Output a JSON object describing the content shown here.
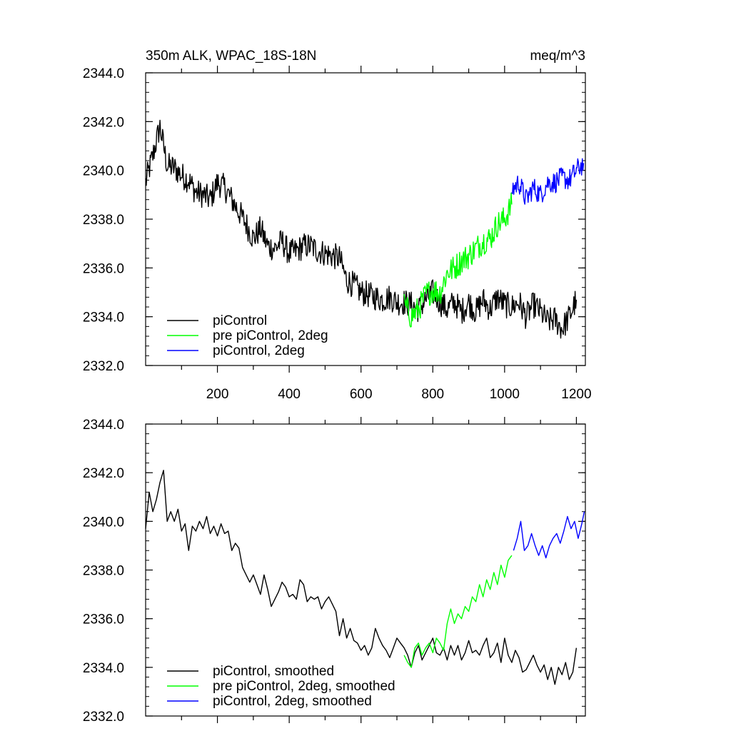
{
  "chart_data": [
    {
      "type": "line",
      "title": "350m ALK, WPAC_18S-18N",
      "units": "meq/m^3",
      "xlim": [
        0,
        1225
      ],
      "ylim": [
        2332.0,
        2344.0
      ],
      "x_ticks": [
        "200",
        "400",
        "600",
        "800",
        "1000",
        "1200"
      ],
      "y_ticks": [
        "2332.0",
        "2334.0",
        "2336.0",
        "2338.0",
        "2340.0",
        "2342.0",
        "2344.0"
      ],
      "legend_position": "bottom-left",
      "series": [
        {
          "name": "piControl",
          "color": "#000000",
          "x": [
            0,
            20,
            40,
            60,
            80,
            100,
            120,
            140,
            160,
            180,
            200,
            220,
            240,
            260,
            280,
            300,
            320,
            340,
            360,
            380,
            400,
            420,
            440,
            460,
            480,
            500,
            520,
            540,
            560,
            580,
            600,
            620,
            640,
            660,
            680,
            700,
            720,
            740,
            760,
            780,
            800,
            820,
            840,
            860,
            880,
            900,
            920,
            940,
            960,
            980,
            1000,
            1020,
            1040,
            1060,
            1080,
            1100,
            1120,
            1140,
            1160,
            1180,
            1200
          ],
          "y": [
            2339.5,
            2340.6,
            2341.8,
            2340.2,
            2340.1,
            2339.8,
            2339.6,
            2339.1,
            2339.0,
            2338.8,
            2339.5,
            2339.3,
            2338.8,
            2338.3,
            2337.8,
            2337.2,
            2337.6,
            2336.9,
            2336.8,
            2337.1,
            2336.6,
            2336.7,
            2336.9,
            2336.9,
            2336.7,
            2336.6,
            2336.5,
            2336.4,
            2335.5,
            2335.3,
            2335.0,
            2334.9,
            2334.8,
            2334.7,
            2334.8,
            2334.6,
            2334.6,
            2334.5,
            2334.3,
            2334.7,
            2335.0,
            2334.6,
            2334.3,
            2334.6,
            2334.2,
            2334.6,
            2334.2,
            2334.7,
            2334.3,
            2334.8,
            2334.5,
            2334.4,
            2334.6,
            2334.0,
            2334.5,
            2334.2,
            2333.8,
            2333.9,
            2333.5,
            2334.0,
            2334.7
          ]
        },
        {
          "name": "pre piControl, 2deg",
          "color": "#00ff00",
          "x": [
            720,
            740,
            760,
            780,
            800,
            820,
            840,
            860,
            880,
            900,
            920,
            940,
            960,
            980,
            1000,
            1020
          ],
          "y": [
            2334.5,
            2334.0,
            2334.3,
            2334.9,
            2335.1,
            2335.0,
            2335.8,
            2336.0,
            2336.3,
            2336.5,
            2336.8,
            2337.1,
            2337.2,
            2337.8,
            2338.0,
            2338.6
          ]
        },
        {
          "name": "piControl, 2deg",
          "color": "#0000ff",
          "x": [
            1020,
            1040,
            1060,
            1080,
            1100,
            1120,
            1140,
            1160,
            1180,
            1200,
            1220
          ],
          "y": [
            2339.2,
            2339.5,
            2338.8,
            2339.3,
            2339.0,
            2339.5,
            2339.5,
            2339.7,
            2339.6,
            2340.0,
            2340.3
          ]
        }
      ]
    },
    {
      "type": "line",
      "xlim": [
        0,
        1225
      ],
      "ylim": [
        2332.0,
        2344.0
      ],
      "y_ticks": [
        "2332.0",
        "2334.0",
        "2336.0",
        "2338.0",
        "2340.0",
        "2342.0",
        "2344.0"
      ],
      "legend_position": "bottom-left",
      "series": [
        {
          "name": "piControl, smoothed",
          "color": "#000000",
          "x": [
            0,
            10,
            20,
            30,
            40,
            50,
            60,
            70,
            80,
            90,
            100,
            110,
            120,
            130,
            140,
            150,
            160,
            170,
            180,
            190,
            200,
            210,
            220,
            230,
            240,
            250,
            260,
            270,
            280,
            290,
            300,
            310,
            320,
            330,
            340,
            350,
            360,
            370,
            380,
            390,
            400,
            410,
            420,
            430,
            440,
            450,
            460,
            470,
            480,
            490,
            500,
            510,
            520,
            530,
            540,
            550,
            560,
            570,
            580,
            590,
            600,
            610,
            620,
            630,
            640,
            650,
            660,
            670,
            680,
            690,
            700,
            710,
            720,
            730,
            740,
            750,
            760,
            770,
            780,
            790,
            800,
            810,
            820,
            830,
            840,
            850,
            860,
            870,
            880,
            890,
            900,
            910,
            920,
            930,
            940,
            950,
            960,
            970,
            980,
            990,
            1000,
            1010,
            1020,
            1030,
            1040,
            1050,
            1060,
            1070,
            1080,
            1090,
            1100,
            1110,
            1120,
            1130,
            1140,
            1150,
            1160,
            1170,
            1180,
            1190,
            1200
          ],
          "y": [
            2339.7,
            2341.2,
            2340.4,
            2340.9,
            2341.6,
            2342.1,
            2340.0,
            2340.4,
            2340.0,
            2340.5,
            2339.6,
            2339.9,
            2338.8,
            2339.8,
            2339.6,
            2340.0,
            2339.7,
            2340.2,
            2339.5,
            2339.8,
            2339.4,
            2339.9,
            2339.5,
            2339.6,
            2338.8,
            2339.1,
            2338.9,
            2338.1,
            2337.8,
            2337.5,
            2337.8,
            2337.4,
            2337.0,
            2337.8,
            2337.2,
            2336.5,
            2336.8,
            2337.1,
            2337.5,
            2337.3,
            2336.9,
            2337.0,
            2336.8,
            2337.6,
            2337.4,
            2336.7,
            2336.9,
            2336.8,
            2336.9,
            2336.4,
            2336.7,
            2336.9,
            2336.6,
            2336.3,
            2335.3,
            2336.0,
            2335.2,
            2335.6,
            2335.1,
            2335.0,
            2334.7,
            2334.9,
            2334.5,
            2334.8,
            2335.6,
            2335.2,
            2334.9,
            2334.7,
            2334.4,
            2334.8,
            2335.2,
            2335.0,
            2334.8,
            2334.5,
            2334.0,
            2334.6,
            2334.9,
            2334.3,
            2334.6,
            2334.9,
            2335.2,
            2334.6,
            2334.5,
            2334.8,
            2334.3,
            2334.9,
            2334.5,
            2334.9,
            2334.3,
            2334.6,
            2335.1,
            2334.6,
            2334.7,
            2334.5,
            2334.9,
            2335.2,
            2334.4,
            2334.6,
            2335.0,
            2334.2,
            2335.2,
            2334.5,
            2334.2,
            2334.7,
            2334.4,
            2333.8,
            2333.9,
            2334.2,
            2334.5,
            2334.1,
            2333.8,
            2334.1,
            2333.5,
            2334.0,
            2333.3,
            2334.0,
            2333.7,
            2334.2,
            2333.5,
            2333.8,
            2334.8
          ]
        },
        {
          "name": "pre piControl, 2deg, smoothed",
          "color": "#00ff00",
          "x": [
            720,
            730,
            740,
            750,
            760,
            770,
            780,
            790,
            800,
            810,
            820,
            830,
            840,
            850,
            860,
            870,
            880,
            890,
            900,
            910,
            920,
            930,
            940,
            950,
            960,
            970,
            980,
            990,
            1000,
            1010,
            1020
          ],
          "y": [
            2334.5,
            2334.2,
            2334.0,
            2334.8,
            2335.0,
            2334.5,
            2334.8,
            2335.0,
            2334.6,
            2335.2,
            2335.0,
            2334.7,
            2335.8,
            2336.4,
            2335.8,
            2336.2,
            2336.0,
            2336.5,
            2336.3,
            2336.9,
            2336.7,
            2337.4,
            2336.9,
            2337.6,
            2337.2,
            2337.9,
            2337.4,
            2338.2,
            2337.7,
            2338.4,
            2338.6
          ]
        },
        {
          "name": "piControl, 2deg, smoothed",
          "color": "#0000ff",
          "x": [
            1025,
            1035,
            1045,
            1055,
            1065,
            1075,
            1085,
            1095,
            1105,
            1115,
            1125,
            1135,
            1145,
            1155,
            1165,
            1175,
            1185,
            1195,
            1205,
            1215,
            1222
          ],
          "y": [
            2338.8,
            2339.3,
            2340.0,
            2338.8,
            2339.0,
            2339.5,
            2339.0,
            2338.6,
            2339.0,
            2338.5,
            2339.0,
            2339.3,
            2339.5,
            2339.1,
            2339.6,
            2340.2,
            2339.7,
            2340.0,
            2339.3,
            2339.9,
            2340.4
          ]
        }
      ]
    }
  ]
}
